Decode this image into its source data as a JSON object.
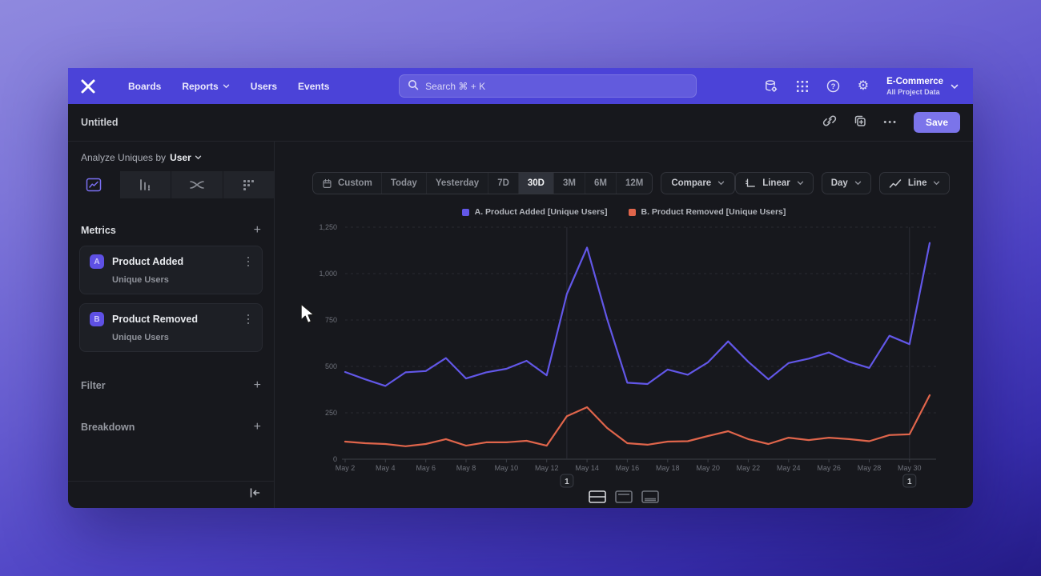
{
  "nav": {
    "links": [
      {
        "label": "Boards"
      },
      {
        "label": "Reports",
        "dropdown": true
      },
      {
        "label": "Users"
      },
      {
        "label": "Events"
      }
    ],
    "search_placeholder": "Search  ⌘ + K",
    "project": {
      "name": "E-Commerce",
      "scope": "All Project Data"
    }
  },
  "report_header": {
    "title": "Untitled",
    "save_label": "Save"
  },
  "sidebar": {
    "analyze_prefix": "Analyze Uniques by",
    "analyze_value": "User",
    "sections": {
      "metrics": "Metrics",
      "filter": "Filter",
      "breakdown": "Breakdown"
    },
    "metrics": [
      {
        "badge": "A",
        "name": "Product Added",
        "measure": "Unique Users"
      },
      {
        "badge": "B",
        "name": "Product Removed",
        "measure": "Unique Users"
      }
    ]
  },
  "toolbar": {
    "ranges": [
      "Custom",
      "Today",
      "Yesterday",
      "7D",
      "30D",
      "3M",
      "6M",
      "12M"
    ],
    "selected_range": "30D",
    "compare_label": "Compare",
    "scale_label": "Linear",
    "interval_label": "Day",
    "chart_type_label": "Line"
  },
  "icons": {
    "gear": "⚙",
    "help": "?",
    "plus": "+",
    "ellipsis": "•••"
  },
  "chart_data": {
    "type": "line",
    "title": "",
    "x": [
      "May 2",
      "May 3",
      "May 4",
      "May 5",
      "May 6",
      "May 7",
      "May 8",
      "May 9",
      "May 10",
      "May 11",
      "May 12",
      "May 13",
      "May 14",
      "May 15",
      "May 16",
      "May 17",
      "May 18",
      "May 19",
      "May 20",
      "May 21",
      "May 22",
      "May 23",
      "May 24",
      "May 25",
      "May 26",
      "May 27",
      "May 28",
      "May 29",
      "May 30",
      "May 31"
    ],
    "x_tick_every": 2,
    "series": [
      {
        "name": "A. Product Added [Unique Users]",
        "color": "#6257e8",
        "values": [
          470,
          430,
          395,
          468,
          475,
          545,
          435,
          468,
          487,
          530,
          452,
          890,
          1140,
          755,
          412,
          405,
          483,
          455,
          522,
          635,
          525,
          430,
          518,
          542,
          575,
          525,
          492,
          665,
          620,
          1165
        ]
      },
      {
        "name": "B. Product Removed [Unique Users]",
        "color": "#e0654b",
        "values": [
          95,
          86,
          82,
          70,
          82,
          108,
          73,
          91,
          91,
          99,
          73,
          232,
          280,
          168,
          86,
          78,
          95,
          97,
          125,
          151,
          108,
          82,
          116,
          103,
          116,
          108,
          97,
          130,
          134,
          345
        ]
      }
    ],
    "ylim": [
      0,
      1250
    ],
    "yticks": [
      0,
      250,
      500,
      750,
      1000,
      1250
    ],
    "ytick_labels": [
      "0",
      "250",
      "500",
      "750",
      "1,000",
      "1,250"
    ],
    "annotations": [
      {
        "x_index": 11,
        "label": "1"
      },
      {
        "x_index": 28,
        "label": "1"
      }
    ],
    "grid": "horizontal-dashed",
    "legend_position": "top-center"
  }
}
